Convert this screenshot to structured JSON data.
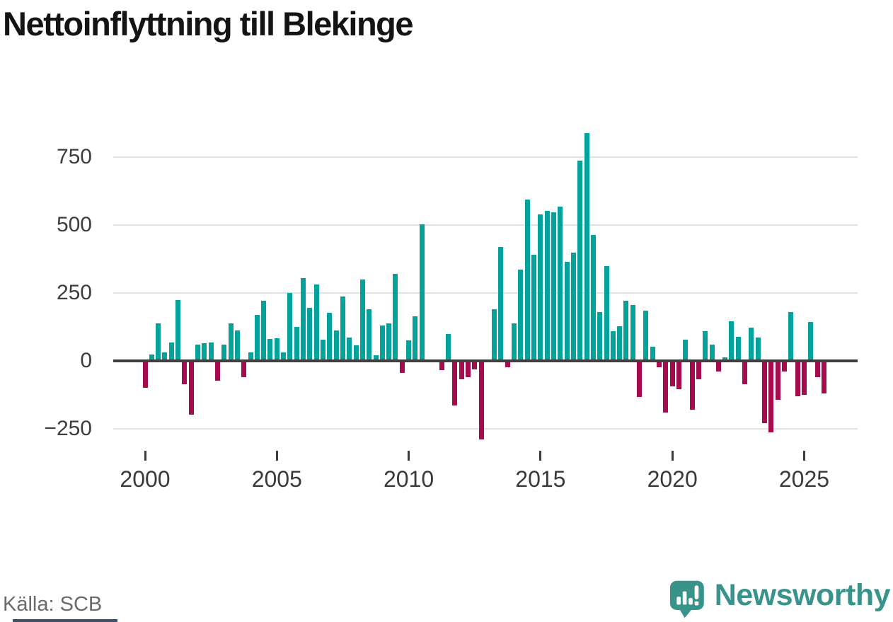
{
  "title": "Nettoinflyttning till Blekinge",
  "source": "Källa: SCB",
  "branding": {
    "name": "Newsworthy",
    "logo_icon": "bar-chart-speech-bubble-icon",
    "color": "#38948b"
  },
  "chart_data": {
    "type": "bar",
    "title": "Nettoinflyttning till Blekinge",
    "frequency": "quarterly",
    "x_start_year": 2000,
    "x_tick_years": [
      2000,
      2005,
      2010,
      2015,
      2020,
      2025
    ],
    "x_tick_labels": [
      "2000",
      "2005",
      "2010",
      "2015",
      "2020",
      "2025"
    ],
    "y_ticks": [
      750,
      500,
      250,
      0,
      -250
    ],
    "y_tick_labels": [
      "750",
      "500",
      "250",
      "0",
      "−250"
    ],
    "ylim": [
      -290,
      850
    ],
    "xlabel": "",
    "ylabel": "",
    "grid": "horizontal",
    "positive_color": "#03a39c",
    "negative_color": "#a50b4d",
    "axis_color": "#3f3f3f",
    "gridline_color": "#e2e2e2",
    "values": [
      -94,
      18,
      133,
      26,
      63,
      220,
      -81,
      -194,
      54,
      60,
      62,
      -67,
      54,
      132,
      106,
      -54,
      26,
      163,
      215,
      75,
      78,
      26,
      245,
      120,
      300,
      190,
      277,
      73,
      172,
      107,
      233,
      81,
      52,
      295,
      185,
      16,
      125,
      133,
      314,
      -39,
      70,
      160,
      497,
      0,
      0,
      -29,
      94,
      -160,
      -63,
      -55,
      -26,
      -285,
      0,
      186,
      413,
      -18,
      133,
      332,
      588,
      386,
      533,
      546,
      541,
      562,
      360,
      394,
      733,
      834,
      459,
      174,
      345,
      104,
      122,
      215,
      200,
      -127,
      179,
      47,
      -19,
      -184,
      -88,
      -99,
      73,
      -174,
      -62,
      104,
      54,
      -34,
      8,
      140,
      83,
      -80,
      117,
      80,
      -223,
      -259,
      -137,
      -34,
      175,
      -124,
      -119,
      138,
      -54,
      -114
    ]
  }
}
